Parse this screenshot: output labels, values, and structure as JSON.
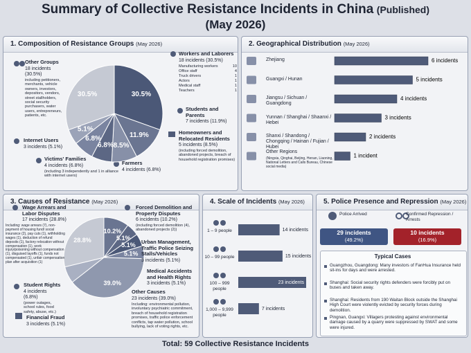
{
  "header": {
    "title": "Summary of Collective Resistance Incidents in China",
    "status": "(Published)",
    "date": "(May 2026)"
  },
  "groups": {
    "heading": "1. Composition of Resistance Groups",
    "date": "(May 2026)",
    "chart": {
      "type": "pie",
      "values": [
        30.5,
        11.9,
        8.5,
        6.8,
        6.8,
        5.1,
        30.5
      ],
      "value_labels": [
        "30.5%",
        "11.9%",
        "8.5%",
        "6.8%",
        "6.8%",
        "5.1%",
        "30.5%"
      ],
      "colors": [
        "#4b5877",
        "#6a7591",
        "#8790a8",
        "#5c6784",
        "#7a84a0",
        "#9ba3b8",
        "#c5c9d3"
      ]
    },
    "items": [
      {
        "name": "Workers and Laborers",
        "count": "18 incidents (30.5%)",
        "breakdown": [
          {
            "label": "Manufacturing workers",
            "value": 10
          },
          {
            "label": "Office staff",
            "value": 4
          },
          {
            "label": "Truck drivers",
            "value": 1
          },
          {
            "label": "Actors",
            "value": 1
          },
          {
            "label": "Medical staff",
            "value": 1
          },
          {
            "label": "Teachers",
            "value": 1
          }
        ]
      },
      {
        "name": "Students and Parents",
        "count": "7 incidents (11.9%)"
      },
      {
        "name": "Homeowners and Relocated Residents",
        "count": "5 incidents (8.5%)",
        "note": "(including forced demolition, abandoned projects, breach of household registration promises)"
      },
      {
        "name": "Farmers",
        "count": "4 incidents (6.8%)"
      },
      {
        "name": "Victims' Families",
        "count": "4 incidents (6.8%)",
        "note": "(including 3 independently and 1 in alliance with internet users)"
      },
      {
        "name": "Internet Users",
        "count": "3 incidents (5.1%)"
      },
      {
        "name": "Other Groups",
        "count": "18 incidents (30.5%)",
        "note": "including petitioners, merchants, vehicle owners, investors, depositors, vendors, street stallholders, social security purchasers, water users, entrepreneurs, patients, etc."
      }
    ]
  },
  "geography": {
    "heading": "2. Geographical Distribution",
    "date": "(May 2026)",
    "chart": {
      "type": "bar",
      "categories": [
        "Zhejiang",
        "Guangxi / Hunan",
        "Jiangsu / Sichuan / Guangdong",
        "Yunnan / Shanghai / Shaanxi / Hebei",
        "Shanxi / Shandong / Chongqing / Hainan / Fujian / Hubei",
        "Other Regions"
      ],
      "values": [
        6,
        5,
        4,
        3,
        2,
        1
      ],
      "value_labels": [
        "6 incidents",
        "5 incidents",
        "4 incidents",
        "3 incidents",
        "2 incidents",
        "1 incident"
      ],
      "color": "#4f5b78",
      "notes": [
        null,
        null,
        null,
        null,
        null,
        "(Ningxia, Qinghai, Beijing, Henan, Liaoning, National Letters and Calls Bureau, Chinese social media)"
      ]
    }
  },
  "causes": {
    "heading": "3. Causes of Resistance",
    "date": "(May 2026)",
    "chart": {
      "type": "pie",
      "values": [
        10.2,
        5.1,
        5.1,
        5.1,
        39.0,
        6.8,
        28.8
      ],
      "value_labels": [
        "10.2%",
        "5.1%",
        "5.1%",
        "5.1%",
        "39.0%",
        null,
        "28.8%"
      ],
      "colors": [
        "#6a7591",
        "#5c6784",
        "#4b5877",
        "#7a84a0",
        "#8f98ae",
        "#a9b0c2",
        "#c5c9d3"
      ]
    },
    "items": [
      {
        "name": "Forced Demolition and Property Disputes",
        "count": "6 incidents (10.2%)",
        "note": "(including forced demolition (4), abandoned projects (2))"
      },
      {
        "name": "Urban Management, Traffic Police Seizing Stalls/Vehicles",
        "count": "3 incidents (5.1%)"
      },
      {
        "name": "Medical Accidents and Health Rights",
        "count": "3 incidents (5.1%)"
      },
      {
        "name": "Financial Fraud",
        "count": "3 incidents (5.1%)"
      },
      {
        "name": "Other Causes",
        "count": "23 incidents (39.0%)",
        "note": "Including: environmental pollution, involuntary psychiatric commitment, breach of household registration promises, traffic police enforcement conflicts, tap water pollution, school bullying, lack of voting rights, etc."
      },
      {
        "name": "Student Rights",
        "count": "4 incidents (6.8%)",
        "note": "(power outages, school rules, food safety, abuse, etc.)"
      },
      {
        "name": "Wage Arrears and Labor Disputes",
        "count": "17 incidents (28.8%)",
        "note": "Including: wage arrears (7), non-payment of housing fund/ social insurance (2), pay cuts (1), withholding wages (1), deduction of refund deposits (1), factory relocation without compensation (1), work injury/poisoning without compensation (1), disguised layoffs (1), funds not compensated (1), unfair compensation plan after acquisition (1)"
      }
    ]
  },
  "scale": {
    "heading": "4. Scale of Incidents",
    "date": "(May 2026)",
    "chart": {
      "type": "bar",
      "categories": [
        "1 – 9 people",
        "10 – 99 people",
        "100 – 999 people",
        "1,000 – 9,999 people"
      ],
      "values": [
        14,
        15,
        23,
        7
      ],
      "value_labels": [
        "14 incidents",
        "15 incidents",
        "23 incidents",
        "7 incidents"
      ],
      "color": "#4f5b78"
    }
  },
  "police": {
    "heading": "5. Police Presence and Repression",
    "date": "(May 2026)",
    "stats": [
      {
        "label": "Police Arrived",
        "count": "29 incidents",
        "share": "(49.2%)"
      },
      {
        "label": "Confirmed Repression / Arrests",
        "count": "10 incidents",
        "share": "(16.9%)"
      }
    ],
    "cases_heading": "Typical Cases",
    "cases": [
      "Guangzhou, Guangdong: Many investors of FanHua Insurance held sit-ins for days and were arrested.",
      "Shanghai: Social security rights defenders were forcibly put on buses and taken away.",
      "Shanghai: Residents from 190 Waitan Block outside the Shanghai High Court were violently evicted by security forces during demolition.",
      "Pingnan, Guangxi: Villagers protesting against environmental damage caused by a quarry were suppressed by SWAT and some were injured."
    ]
  },
  "footer": "Total: 59 Collective Resistance Incidents"
}
